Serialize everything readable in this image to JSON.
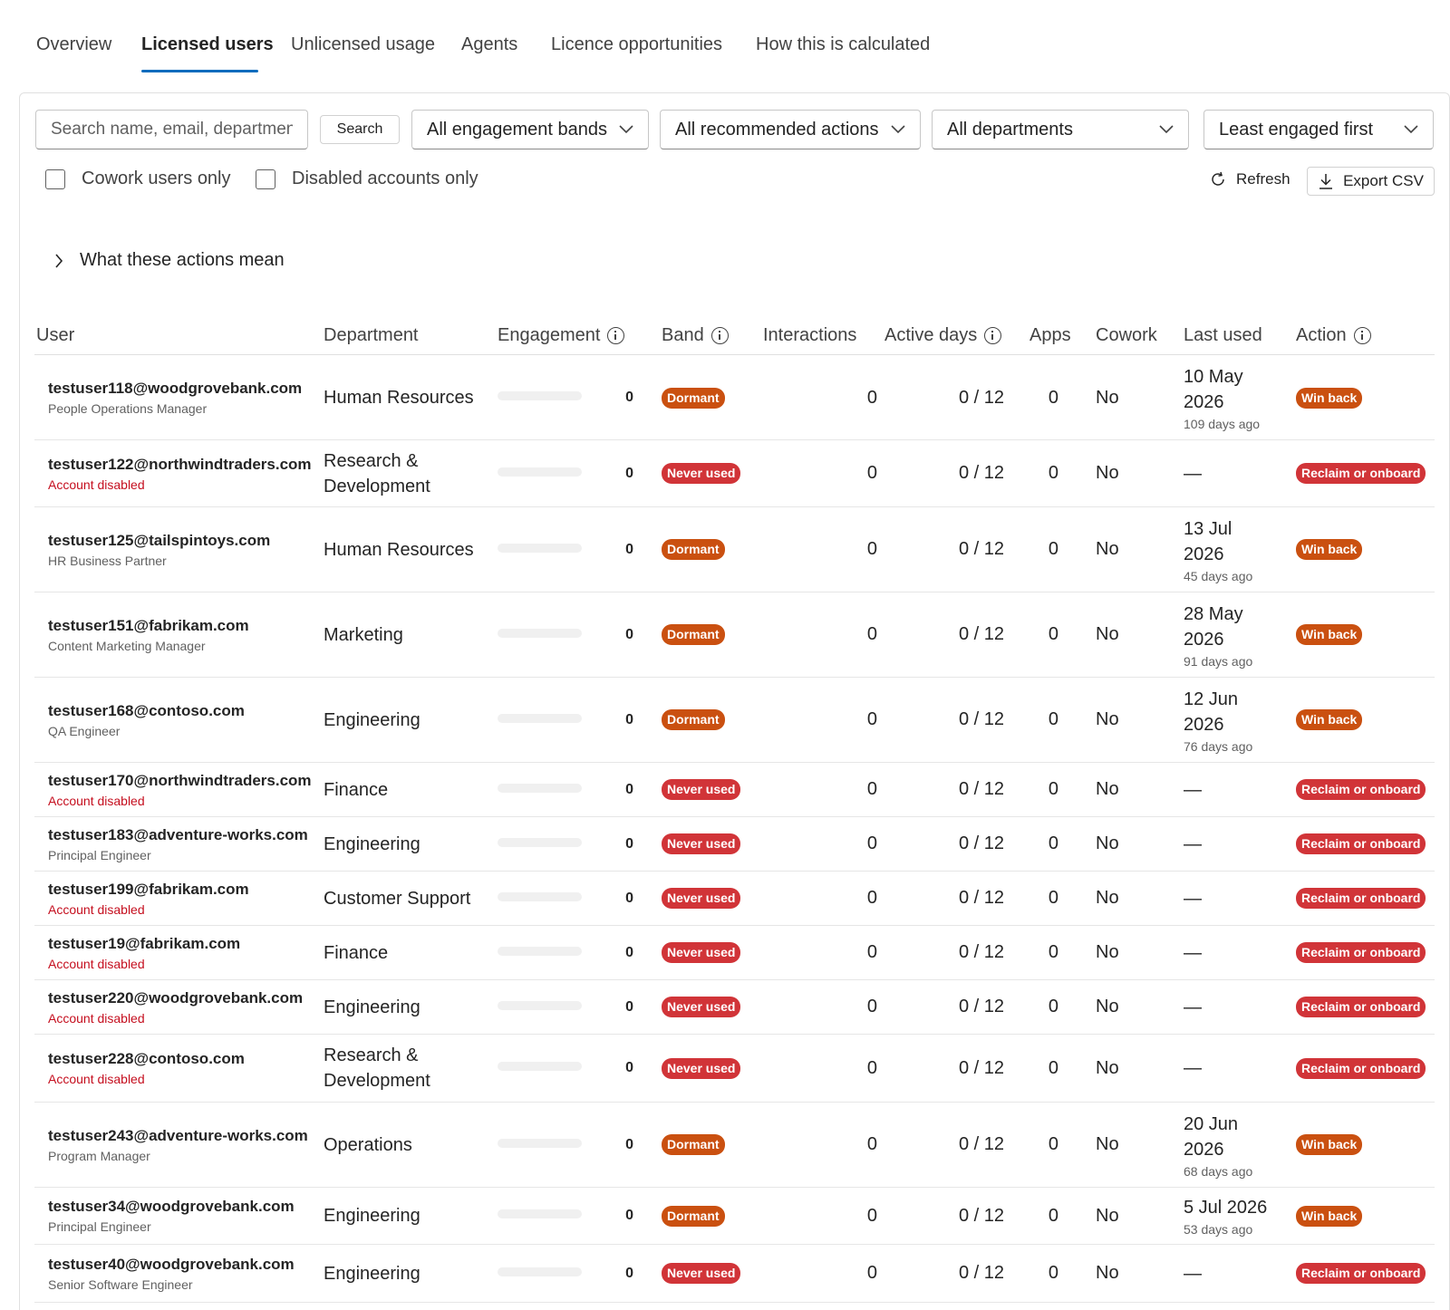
{
  "tabs": [
    {
      "label": "Overview"
    },
    {
      "label": "Licensed users"
    },
    {
      "label": "Unlicensed usage"
    },
    {
      "label": "Agents"
    },
    {
      "label": "Licence opportunities"
    },
    {
      "label": "How this is calculated"
    }
  ],
  "active_tab": "Licensed users",
  "filters": {
    "search_placeholder": "Search name, email, department",
    "search_button": "Search",
    "engagement_band": "All engagement bands",
    "recommended_action": "All recommended actions",
    "department": "All departments",
    "sort": "Least engaged first",
    "cowork_only": "Cowork users only",
    "disabled_only": "Disabled accounts only",
    "refresh": "Refresh",
    "export": "Export CSV"
  },
  "disclosure": "What these actions mean",
  "columns": {
    "user": "User",
    "department": "Department",
    "engagement": "Engagement",
    "band": "Band",
    "interactions": "Interactions",
    "active_days": "Active days",
    "apps": "Apps",
    "cowork": "Cowork",
    "last_used": "Last used",
    "action": "Action"
  },
  "rows": [
    {
      "email": "testuser118@woodgrovebank.com",
      "sub": "People Operations Manager",
      "disabled": false,
      "department": "Human Resources",
      "engagement_score": 0,
      "band": "Dormant",
      "interactions": "0",
      "active_days": "0 / 12",
      "apps": "0",
      "cowork": "No",
      "last_used_line1": "10 May",
      "last_used_line2": "2026",
      "last_used_ago": "109 days ago",
      "action": "Win back"
    },
    {
      "email": "testuser122@northwindtraders.com",
      "sub": "Account disabled",
      "disabled": true,
      "department": "Research & Development",
      "engagement_score": 0,
      "band": "Never used",
      "interactions": "0",
      "active_days": "0 / 12",
      "apps": "0",
      "cowork": "No",
      "last_used_line1": "—",
      "last_used_line2": "",
      "last_used_ago": "",
      "action": "Reclaim or onboard"
    },
    {
      "email": "testuser125@tailspintoys.com",
      "sub": "HR Business Partner",
      "disabled": false,
      "department": "Human Resources",
      "engagement_score": 0,
      "band": "Dormant",
      "interactions": "0",
      "active_days": "0 / 12",
      "apps": "0",
      "cowork": "No",
      "last_used_line1": "13 Jul",
      "last_used_line2": "2026",
      "last_used_ago": "45 days ago",
      "action": "Win back"
    },
    {
      "email": "testuser151@fabrikam.com",
      "sub": "Content Marketing Manager",
      "disabled": false,
      "department": "Marketing",
      "engagement_score": 0,
      "band": "Dormant",
      "interactions": "0",
      "active_days": "0 / 12",
      "apps": "0",
      "cowork": "No",
      "last_used_line1": "28 May",
      "last_used_line2": "2026",
      "last_used_ago": "91 days ago",
      "action": "Win back"
    },
    {
      "email": "testuser168@contoso.com",
      "sub": "QA Engineer",
      "disabled": false,
      "department": "Engineering",
      "engagement_score": 0,
      "band": "Dormant",
      "interactions": "0",
      "active_days": "0 / 12",
      "apps": "0",
      "cowork": "No",
      "last_used_line1": "12 Jun",
      "last_used_line2": "2026",
      "last_used_ago": "76 days ago",
      "action": "Win back"
    },
    {
      "email": "testuser170@northwindtraders.com",
      "sub": "Account disabled",
      "disabled": true,
      "department": "Finance",
      "engagement_score": 0,
      "band": "Never used",
      "interactions": "0",
      "active_days": "0 / 12",
      "apps": "0",
      "cowork": "No",
      "last_used_line1": "—",
      "last_used_line2": "",
      "last_used_ago": "",
      "action": "Reclaim or onboard"
    },
    {
      "email": "testuser183@adventure-works.com",
      "sub": "Principal Engineer",
      "disabled": false,
      "department": "Engineering",
      "engagement_score": 0,
      "band": "Never used",
      "interactions": "0",
      "active_days": "0 / 12",
      "apps": "0",
      "cowork": "No",
      "last_used_line1": "—",
      "last_used_line2": "",
      "last_used_ago": "",
      "action": "Reclaim or onboard"
    },
    {
      "email": "testuser199@fabrikam.com",
      "sub": "Account disabled",
      "disabled": true,
      "department": "Customer Support",
      "engagement_score": 0,
      "band": "Never used",
      "interactions": "0",
      "active_days": "0 / 12",
      "apps": "0",
      "cowork": "No",
      "last_used_line1": "—",
      "last_used_line2": "",
      "last_used_ago": "",
      "action": "Reclaim or onboard"
    },
    {
      "email": "testuser19@fabrikam.com",
      "sub": "Account disabled",
      "disabled": true,
      "department": "Finance",
      "engagement_score": 0,
      "band": "Never used",
      "interactions": "0",
      "active_days": "0 / 12",
      "apps": "0",
      "cowork": "No",
      "last_used_line1": "—",
      "last_used_line2": "",
      "last_used_ago": "",
      "action": "Reclaim or onboard"
    },
    {
      "email": "testuser220@woodgrovebank.com",
      "sub": "Account disabled",
      "disabled": true,
      "department": "Engineering",
      "engagement_score": 0,
      "band": "Never used",
      "interactions": "0",
      "active_days": "0 / 12",
      "apps": "0",
      "cowork": "No",
      "last_used_line1": "—",
      "last_used_line2": "",
      "last_used_ago": "",
      "action": "Reclaim or onboard"
    },
    {
      "email": "testuser228@contoso.com",
      "sub": "Account disabled",
      "disabled": true,
      "department": "Research & Development",
      "engagement_score": 0,
      "band": "Never used",
      "interactions": "0",
      "active_days": "0 / 12",
      "apps": "0",
      "cowork": "No",
      "last_used_line1": "—",
      "last_used_line2": "",
      "last_used_ago": "",
      "action": "Reclaim or onboard"
    },
    {
      "email": "testuser243@adventure-works.com",
      "sub": "Program Manager",
      "disabled": false,
      "department": "Operations",
      "engagement_score": 0,
      "band": "Dormant",
      "interactions": "0",
      "active_days": "0 / 12",
      "apps": "0",
      "cowork": "No",
      "last_used_line1": "20 Jun",
      "last_used_line2": "2026",
      "last_used_ago": "68 days ago",
      "action": "Win back"
    },
    {
      "email": "testuser34@woodgrovebank.com",
      "sub": "Principal Engineer",
      "disabled": false,
      "department": "Engineering",
      "engagement_score": 0,
      "band": "Dormant",
      "interactions": "0",
      "active_days": "0 / 12",
      "apps": "0",
      "cowork": "No",
      "last_used_line1": "5 Jul 2026",
      "last_used_line2": "",
      "last_used_ago": "53 days ago",
      "action": "Win back"
    },
    {
      "email": "testuser40@woodgrovebank.com",
      "sub": "Senior Software Engineer",
      "disabled": false,
      "department": "Engineering",
      "engagement_score": 0,
      "band": "Never used",
      "interactions": "0",
      "active_days": "0 / 12",
      "apps": "0",
      "cowork": "No",
      "last_used_line1": "—",
      "last_used_line2": "",
      "last_used_ago": "",
      "action": "Reclaim or onboard"
    }
  ]
}
